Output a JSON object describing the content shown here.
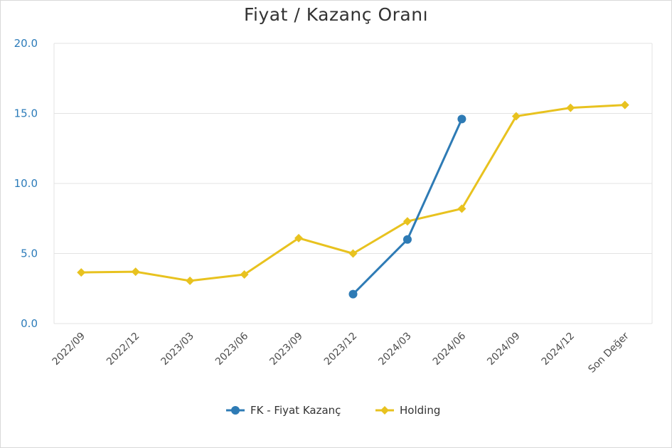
{
  "chart_data": {
    "type": "line",
    "title": "Fiyat / Kazanç Oranı",
    "xlabel": "",
    "ylabel": "",
    "categories": [
      "2022/09",
      "2022/12",
      "2023/03",
      "2023/06",
      "2023/09",
      "2023/12",
      "2024/03",
      "2024/06",
      "2024/09",
      "2024/12",
      "Son Değer"
    ],
    "ylim": [
      0,
      20
    ],
    "yticks": [
      "0.0",
      "5.0",
      "10.0",
      "15.0",
      "20.0"
    ],
    "grid": true,
    "legend_position": "bottom-center",
    "series": [
      {
        "name": "FK - Fiyat Kazanç",
        "color": "#2e7bb5",
        "marker": "circle",
        "values": [
          null,
          null,
          null,
          null,
          null,
          2.1,
          6.0,
          14.6,
          null,
          null,
          null
        ]
      },
      {
        "name": "Holding",
        "color": "#e8c21f",
        "marker": "diamond",
        "values": [
          3.65,
          3.7,
          3.05,
          3.5,
          6.1,
          5.0,
          7.3,
          8.2,
          14.8,
          15.4,
          15.6
        ]
      }
    ]
  }
}
